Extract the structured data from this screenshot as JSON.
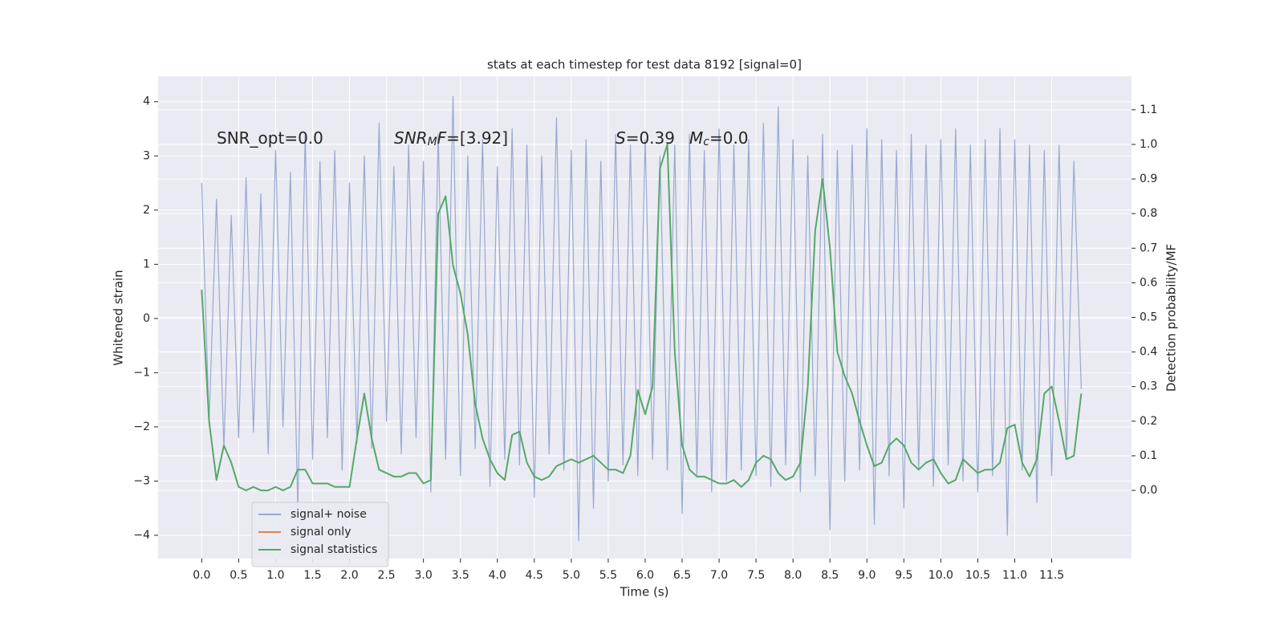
{
  "chart_data": {
    "type": "line",
    "title": "stats at each timestep for test data 8192 [signal=0]",
    "x_label": "Time (s)",
    "y_label": "Whitened strain",
    "y2_label": "Detection probability/MF",
    "annotations": [
      [
        {
          "text": "SNR_opt=0.0"
        }
      ],
      [
        {
          "text": "SNR",
          "italic": true
        },
        {
          "text": "M",
          "italic": true,
          "sub": true
        },
        {
          "text": "F",
          "italic": true
        },
        {
          "text": "=[3.92]"
        }
      ],
      [
        {
          "text": "S",
          "italic": true
        },
        {
          "text": "=0.39"
        }
      ],
      [
        {
          "text": "M",
          "italic": true
        },
        {
          "text": "c",
          "italic": true,
          "sub": true
        },
        {
          "text": "=0.0"
        }
      ]
    ],
    "x": [
      0,
      0.1,
      0.2,
      0.3,
      0.4,
      0.5,
      0.6,
      0.7,
      0.8,
      0.9,
      1,
      1.1,
      1.2,
      1.3,
      1.4,
      1.5,
      1.6,
      1.7,
      1.8,
      1.9,
      2,
      2.1,
      2.2,
      2.3,
      2.4,
      2.5,
      2.6,
      2.7,
      2.8,
      2.9,
      3,
      3.1,
      3.2,
      3.3,
      3.4,
      3.5,
      3.6,
      3.7,
      3.8,
      3.9,
      4,
      4.1,
      4.2,
      4.3,
      4.4,
      4.5,
      4.6,
      4.7,
      4.8,
      4.9,
      5,
      5.1,
      5.2,
      5.3,
      5.4,
      5.5,
      5.6,
      5.7,
      5.8,
      5.9,
      6,
      6.1,
      6.2,
      6.3,
      6.4,
      6.5,
      6.6,
      6.7,
      6.8,
      6.9,
      7,
      7.1,
      7.2,
      7.3,
      7.4,
      7.5,
      7.6,
      7.7,
      7.8,
      7.9,
      8,
      8.1,
      8.2,
      8.3,
      8.4,
      8.5,
      8.6,
      8.7,
      8.8,
      8.9,
      9,
      9.1,
      9.2,
      9.3,
      9.4,
      9.5,
      9.6,
      9.7,
      9.8,
      9.9,
      10,
      10.1,
      10.2,
      10.3,
      10.4,
      10.5,
      10.6,
      10.7,
      10.8,
      10.9,
      11,
      11.1,
      11.2,
      11.3,
      11.4,
      11.5,
      11.6,
      11.7,
      11.8,
      11.9
    ],
    "series": [
      {
        "name": "signal+ noise",
        "color": "#97a9d0",
        "values": [
          2.5,
          -1.9,
          2.2,
          -2.4,
          1.9,
          -2.2,
          2.6,
          -2.1,
          2.3,
          -2.5,
          3.1,
          -2.0,
          2.7,
          -3.5,
          3.4,
          -2.6,
          2.9,
          -2.2,
          3.1,
          -2.8,
          2.5,
          -2.3,
          3.0,
          -2.4,
          3.6,
          -1.9,
          2.8,
          -2.5,
          3.2,
          -2.2,
          2.9,
          -3.2,
          3.4,
          -2.6,
          4.1,
          -2.9,
          3.0,
          -2.4,
          3.3,
          -3.1,
          2.8,
          -2.6,
          3.5,
          -2.7,
          3.2,
          -3.3,
          3.0,
          -2.5,
          3.7,
          -2.8,
          3.1,
          -4.1,
          3.3,
          -3.5,
          2.9,
          -3.0,
          3.4,
          -2.7,
          3.2,
          -2.9,
          3.3,
          -2.6,
          3.0,
          -2.8,
          3.2,
          -3.6,
          3.4,
          -2.9,
          3.1,
          -3.2,
          3.5,
          -3.0,
          3.2,
          -2.8,
          3.3,
          -2.9,
          3.6,
          -3.1,
          3.9,
          -2.7,
          3.3,
          -3.2,
          3.0,
          -2.9,
          3.4,
          -3.9,
          3.1,
          -3.0,
          3.2,
          -2.8,
          3.5,
          -3.8,
          3.3,
          -2.9,
          3.1,
          -3.5,
          3.4,
          -2.8,
          3.2,
          -3.1,
          3.3,
          -2.7,
          3.5,
          -3.0,
          3.2,
          -3.2,
          3.3,
          -2.9,
          3.5,
          -4.0,
          3.3,
          -2.8,
          3.2,
          -3.4,
          3.1,
          -2.9,
          3.2,
          -2.6,
          2.9,
          -1.3
        ]
      },
      {
        "name": "signal only",
        "color": "#dd8452",
        "values": [
          null,
          null,
          null,
          null,
          null,
          null,
          null,
          null,
          null,
          null,
          null,
          null,
          null,
          null,
          null,
          null,
          null,
          null,
          null,
          null,
          null,
          null,
          null,
          null,
          null,
          null,
          null,
          null,
          null,
          null,
          null,
          null,
          null,
          null,
          null,
          null,
          null,
          null,
          null,
          null,
          null,
          null,
          null,
          null,
          null,
          null,
          null,
          null,
          null,
          null,
          null,
          null,
          null,
          null,
          null,
          null,
          null,
          null,
          null,
          null,
          null,
          null,
          null,
          null,
          null,
          null,
          null,
          null,
          null,
          null,
          null,
          null,
          null,
          null,
          null,
          null,
          null,
          null,
          null,
          null,
          null,
          null,
          null,
          null,
          null,
          null,
          null,
          null,
          null,
          null,
          null,
          null,
          null,
          null,
          null,
          null,
          null,
          null,
          null,
          null,
          null,
          null,
          null,
          null,
          null,
          null,
          null,
          null,
          null,
          null,
          null,
          null,
          null,
          null,
          null,
          null,
          null,
          null,
          null,
          null
        ]
      },
      {
        "name": "signal statistics",
        "color": "#55a868",
        "axis": "y2",
        "values": [
          0.58,
          0.2,
          0.03,
          0.13,
          0.08,
          0.01,
          0.0,
          0.01,
          0.0,
          0.0,
          0.01,
          0.0,
          0.01,
          0.06,
          0.06,
          0.02,
          0.02,
          0.02,
          0.01,
          0.01,
          0.01,
          0.15,
          0.28,
          0.15,
          0.06,
          0.05,
          0.04,
          0.04,
          0.05,
          0.05,
          0.02,
          0.03,
          0.8,
          0.85,
          0.65,
          0.57,
          0.45,
          0.25,
          0.15,
          0.09,
          0.05,
          0.03,
          0.16,
          0.17,
          0.08,
          0.04,
          0.03,
          0.04,
          0.07,
          0.08,
          0.09,
          0.08,
          0.09,
          0.1,
          0.08,
          0.06,
          0.06,
          0.05,
          0.1,
          0.29,
          0.22,
          0.3,
          0.93,
          1.0,
          0.4,
          0.13,
          0.06,
          0.04,
          0.04,
          0.03,
          0.02,
          0.02,
          0.03,
          0.01,
          0.03,
          0.08,
          0.1,
          0.09,
          0.05,
          0.03,
          0.04,
          0.08,
          0.3,
          0.75,
          0.9,
          0.7,
          0.4,
          0.33,
          0.28,
          0.2,
          0.13,
          0.07,
          0.08,
          0.13,
          0.15,
          0.13,
          0.08,
          0.06,
          0.08,
          0.09,
          0.05,
          0.02,
          0.03,
          0.09,
          0.07,
          0.05,
          0.06,
          0.06,
          0.08,
          0.18,
          0.19,
          0.08,
          0.04,
          0.09,
          0.28,
          0.3,
          0.2,
          0.09,
          0.1,
          0.28
        ]
      }
    ],
    "xlim": [
      -0.59,
      12.58
    ],
    "xticks": [
      {
        "value": 0,
        "label": "0.0"
      },
      0.5,
      {
        "value": 1,
        "label": "1.0"
      },
      1.5,
      {
        "value": 2,
        "label": "2.0"
      },
      2.5,
      {
        "value": 3,
        "label": "3.0"
      },
      3.5,
      {
        "value": 4,
        "label": "4.0"
      },
      4.5,
      {
        "value": 5,
        "label": "5.0"
      },
      5.5,
      {
        "value": 6,
        "label": "6.0"
      },
      6.5,
      {
        "value": 7,
        "label": "7.0"
      },
      7.5,
      {
        "value": 8,
        "label": "8.0"
      },
      8.5,
      {
        "value": 9,
        "label": "9.0"
      },
      9.5,
      {
        "value": 10,
        "label": "10.0"
      },
      10.5,
      {
        "value": 11,
        "label": "11.0"
      },
      11.5
    ],
    "ylim": [
      -4.43,
      4.47
    ],
    "yticks": [
      {
        "value": -4,
        "label": "−4"
      },
      {
        "value": -3,
        "label": "−3"
      },
      {
        "value": -2,
        "label": "−2"
      },
      {
        "value": -1,
        "label": "−1"
      },
      0,
      1,
      2,
      3,
      4
    ],
    "y2lim": [
      -0.197,
      1.197
    ],
    "y2ticks": [
      {
        "value": 0,
        "label": "0.0"
      },
      0.1,
      0.2,
      0.3,
      0.4,
      0.5,
      0.6,
      0.7,
      0.8,
      0.9,
      {
        "value": 1,
        "label": "1.0"
      },
      1.1
    ],
    "grid": true,
    "legend_loc": "lower left"
  }
}
